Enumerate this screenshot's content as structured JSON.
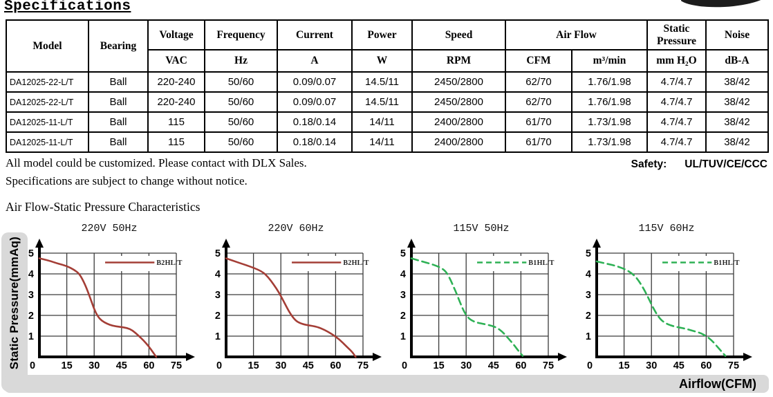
{
  "page": {
    "title": "Specifications",
    "notes": [
      "All model could be customized. Please contact with DLX Sales.",
      "Specifications are subject to change without notice."
    ],
    "safety_label": "Safety:",
    "safety_value": "UL/TUV/CE/CCC",
    "section_title": "Air Flow-Static Pressure Characteristics"
  },
  "table": {
    "header": {
      "model": "Model",
      "bearing": "Bearing",
      "cols": [
        {
          "name": "Voltage",
          "unit": "VAC"
        },
        {
          "name": "Frequency",
          "unit": "Hz"
        },
        {
          "name": "Current",
          "unit": "A"
        },
        {
          "name": "Power",
          "unit": "W"
        },
        {
          "name": "Speed",
          "unit": "RPM"
        }
      ],
      "airflow": {
        "name": "Air Flow",
        "units": [
          "CFM",
          "m³/min"
        ]
      },
      "static_pressure": {
        "name": "Static Pressure",
        "unit": "mm H₂O"
      },
      "noise": {
        "name": "Noise",
        "unit": "dB-A"
      }
    },
    "rows": [
      [
        "DA12025-22-L/T",
        "Ball",
        "220-240",
        "50/60",
        "0.09/0.07",
        "14.5/11",
        "2450/2800",
        "62/70",
        "1.76/1.98",
        "4.7/4.7",
        "38/42"
      ],
      [
        "DA12025-22-L/T",
        "Ball",
        "220-240",
        "50/60",
        "0.09/0.07",
        "14.5/11",
        "2450/2800",
        "62/70",
        "1.76/1.98",
        "4.7/4.7",
        "38/42"
      ],
      [
        "DA12025-11-L/T",
        "Ball",
        "115",
        "50/60",
        "0.18/0.14",
        "14/11",
        "2400/2800",
        "61/70",
        "1.73/1.98",
        "4.7/4.7",
        "38/42"
      ],
      [
        "DA12025-11-L/T",
        "Ball",
        "115",
        "50/60",
        "0.18/0.14",
        "14/11",
        "2400/2800",
        "61/70",
        "1.73/1.98",
        "4.7/4.7",
        "38/42"
      ]
    ]
  },
  "axis_labels": {
    "y": "Static Pressure(mmAq)",
    "x": "Airflow(CFM)"
  },
  "chart_data": [
    {
      "type": "line",
      "title": "220V 50Hz",
      "legend": "B2HL/T",
      "color": "#a43e36",
      "dash": false,
      "xlabel": "Airflow(CFM)",
      "ylabel": "Static Pressure(mmAq)",
      "xlim": [
        0,
        75
      ],
      "ylim": [
        0,
        5
      ],
      "x_ticks": [
        0,
        15,
        30,
        45,
        60,
        75
      ],
      "y_ticks": [
        1,
        2,
        3,
        4,
        5
      ],
      "points": [
        [
          0,
          4.75
        ],
        [
          5,
          4.65
        ],
        [
          10,
          4.5
        ],
        [
          15,
          4.38
        ],
        [
          19,
          4.2
        ],
        [
          22,
          4.0
        ],
        [
          25,
          3.5
        ],
        [
          28,
          2.8
        ],
        [
          30,
          2.3
        ],
        [
          32,
          1.95
        ],
        [
          34,
          1.75
        ],
        [
          37,
          1.6
        ],
        [
          40,
          1.5
        ],
        [
          44,
          1.45
        ],
        [
          48,
          1.4
        ],
        [
          51,
          1.28
        ],
        [
          54,
          1.05
        ],
        [
          57,
          0.8
        ],
        [
          60,
          0.5
        ],
        [
          62,
          0.25
        ],
        [
          64,
          0
        ]
      ]
    },
    {
      "type": "line",
      "title": "220V 60Hz",
      "legend": "B2HL/T",
      "color": "#a43e36",
      "dash": false,
      "xlabel": "Airflow(CFM)",
      "ylabel": "Static Pressure(mmAq)",
      "xlim": [
        0,
        75
      ],
      "ylim": [
        0,
        5
      ],
      "x_ticks": [
        0,
        15,
        30,
        45,
        60,
        75
      ],
      "y_ticks": [
        1,
        2,
        3,
        4,
        5
      ],
      "points": [
        [
          0,
          4.75
        ],
        [
          5,
          4.6
        ],
        [
          10,
          4.45
        ],
        [
          15,
          4.3
        ],
        [
          20,
          4.1
        ],
        [
          23,
          3.85
        ],
        [
          26,
          3.5
        ],
        [
          29,
          3.1
        ],
        [
          32,
          2.6
        ],
        [
          35,
          2.1
        ],
        [
          38,
          1.75
        ],
        [
          41,
          1.6
        ],
        [
          45,
          1.52
        ],
        [
          50,
          1.45
        ],
        [
          54,
          1.3
        ],
        [
          58,
          1.1
        ],
        [
          62,
          0.85
        ],
        [
          66,
          0.5
        ],
        [
          69,
          0.25
        ],
        [
          71,
          0
        ]
      ]
    },
    {
      "type": "line",
      "title": "115V 50Hz",
      "legend": "B1HL/T",
      "color": "#2eb155",
      "dash": true,
      "xlabel": "Airflow(CFM)",
      "ylabel": "Static Pressure(mmAq)",
      "xlim": [
        0,
        75
      ],
      "ylim": [
        0,
        5
      ],
      "x_ticks": [
        0,
        15,
        30,
        45,
        60,
        75
      ],
      "y_ticks": [
        1,
        2,
        3,
        4,
        5
      ],
      "points": [
        [
          0,
          4.75
        ],
        [
          5,
          4.62
        ],
        [
          10,
          4.5
        ],
        [
          14,
          4.38
        ],
        [
          17,
          4.25
        ],
        [
          19,
          4.1
        ],
        [
          21,
          3.8
        ],
        [
          23,
          3.4
        ],
        [
          25,
          3.0
        ],
        [
          27,
          2.55
        ],
        [
          29,
          2.15
        ],
        [
          31,
          1.9
        ],
        [
          33,
          1.75
        ],
        [
          36,
          1.65
        ],
        [
          40,
          1.58
        ],
        [
          44,
          1.5
        ],
        [
          47,
          1.4
        ],
        [
          50,
          1.2
        ],
        [
          53,
          0.9
        ],
        [
          56,
          0.6
        ],
        [
          59,
          0.25
        ],
        [
          61,
          0.05
        ]
      ]
    },
    {
      "type": "line",
      "title": "115V 60Hz",
      "legend": "B1HL/T",
      "color": "#2eb155",
      "dash": true,
      "xlabel": "Airflow(CFM)",
      "ylabel": "Static Pressure(mmAq)",
      "xlim": [
        0,
        75
      ],
      "ylim": [
        0,
        5
      ],
      "x_ticks": [
        0,
        15,
        30,
        45,
        60,
        75
      ],
      "y_ticks": [
        1,
        2,
        3,
        4,
        5
      ],
      "points": [
        [
          0,
          4.6
        ],
        [
          5,
          4.5
        ],
        [
          10,
          4.4
        ],
        [
          15,
          4.25
        ],
        [
          19,
          4.05
        ],
        [
          22,
          3.8
        ],
        [
          25,
          3.4
        ],
        [
          28,
          2.9
        ],
        [
          31,
          2.35
        ],
        [
          34,
          1.9
        ],
        [
          37,
          1.65
        ],
        [
          41,
          1.5
        ],
        [
          45,
          1.42
        ],
        [
          49,
          1.35
        ],
        [
          53,
          1.25
        ],
        [
          57,
          1.15
        ],
        [
          60,
          1.0
        ],
        [
          63,
          0.8
        ],
        [
          66,
          0.5
        ],
        [
          69,
          0.2
        ],
        [
          70.5,
          0.05
        ]
      ]
    }
  ]
}
